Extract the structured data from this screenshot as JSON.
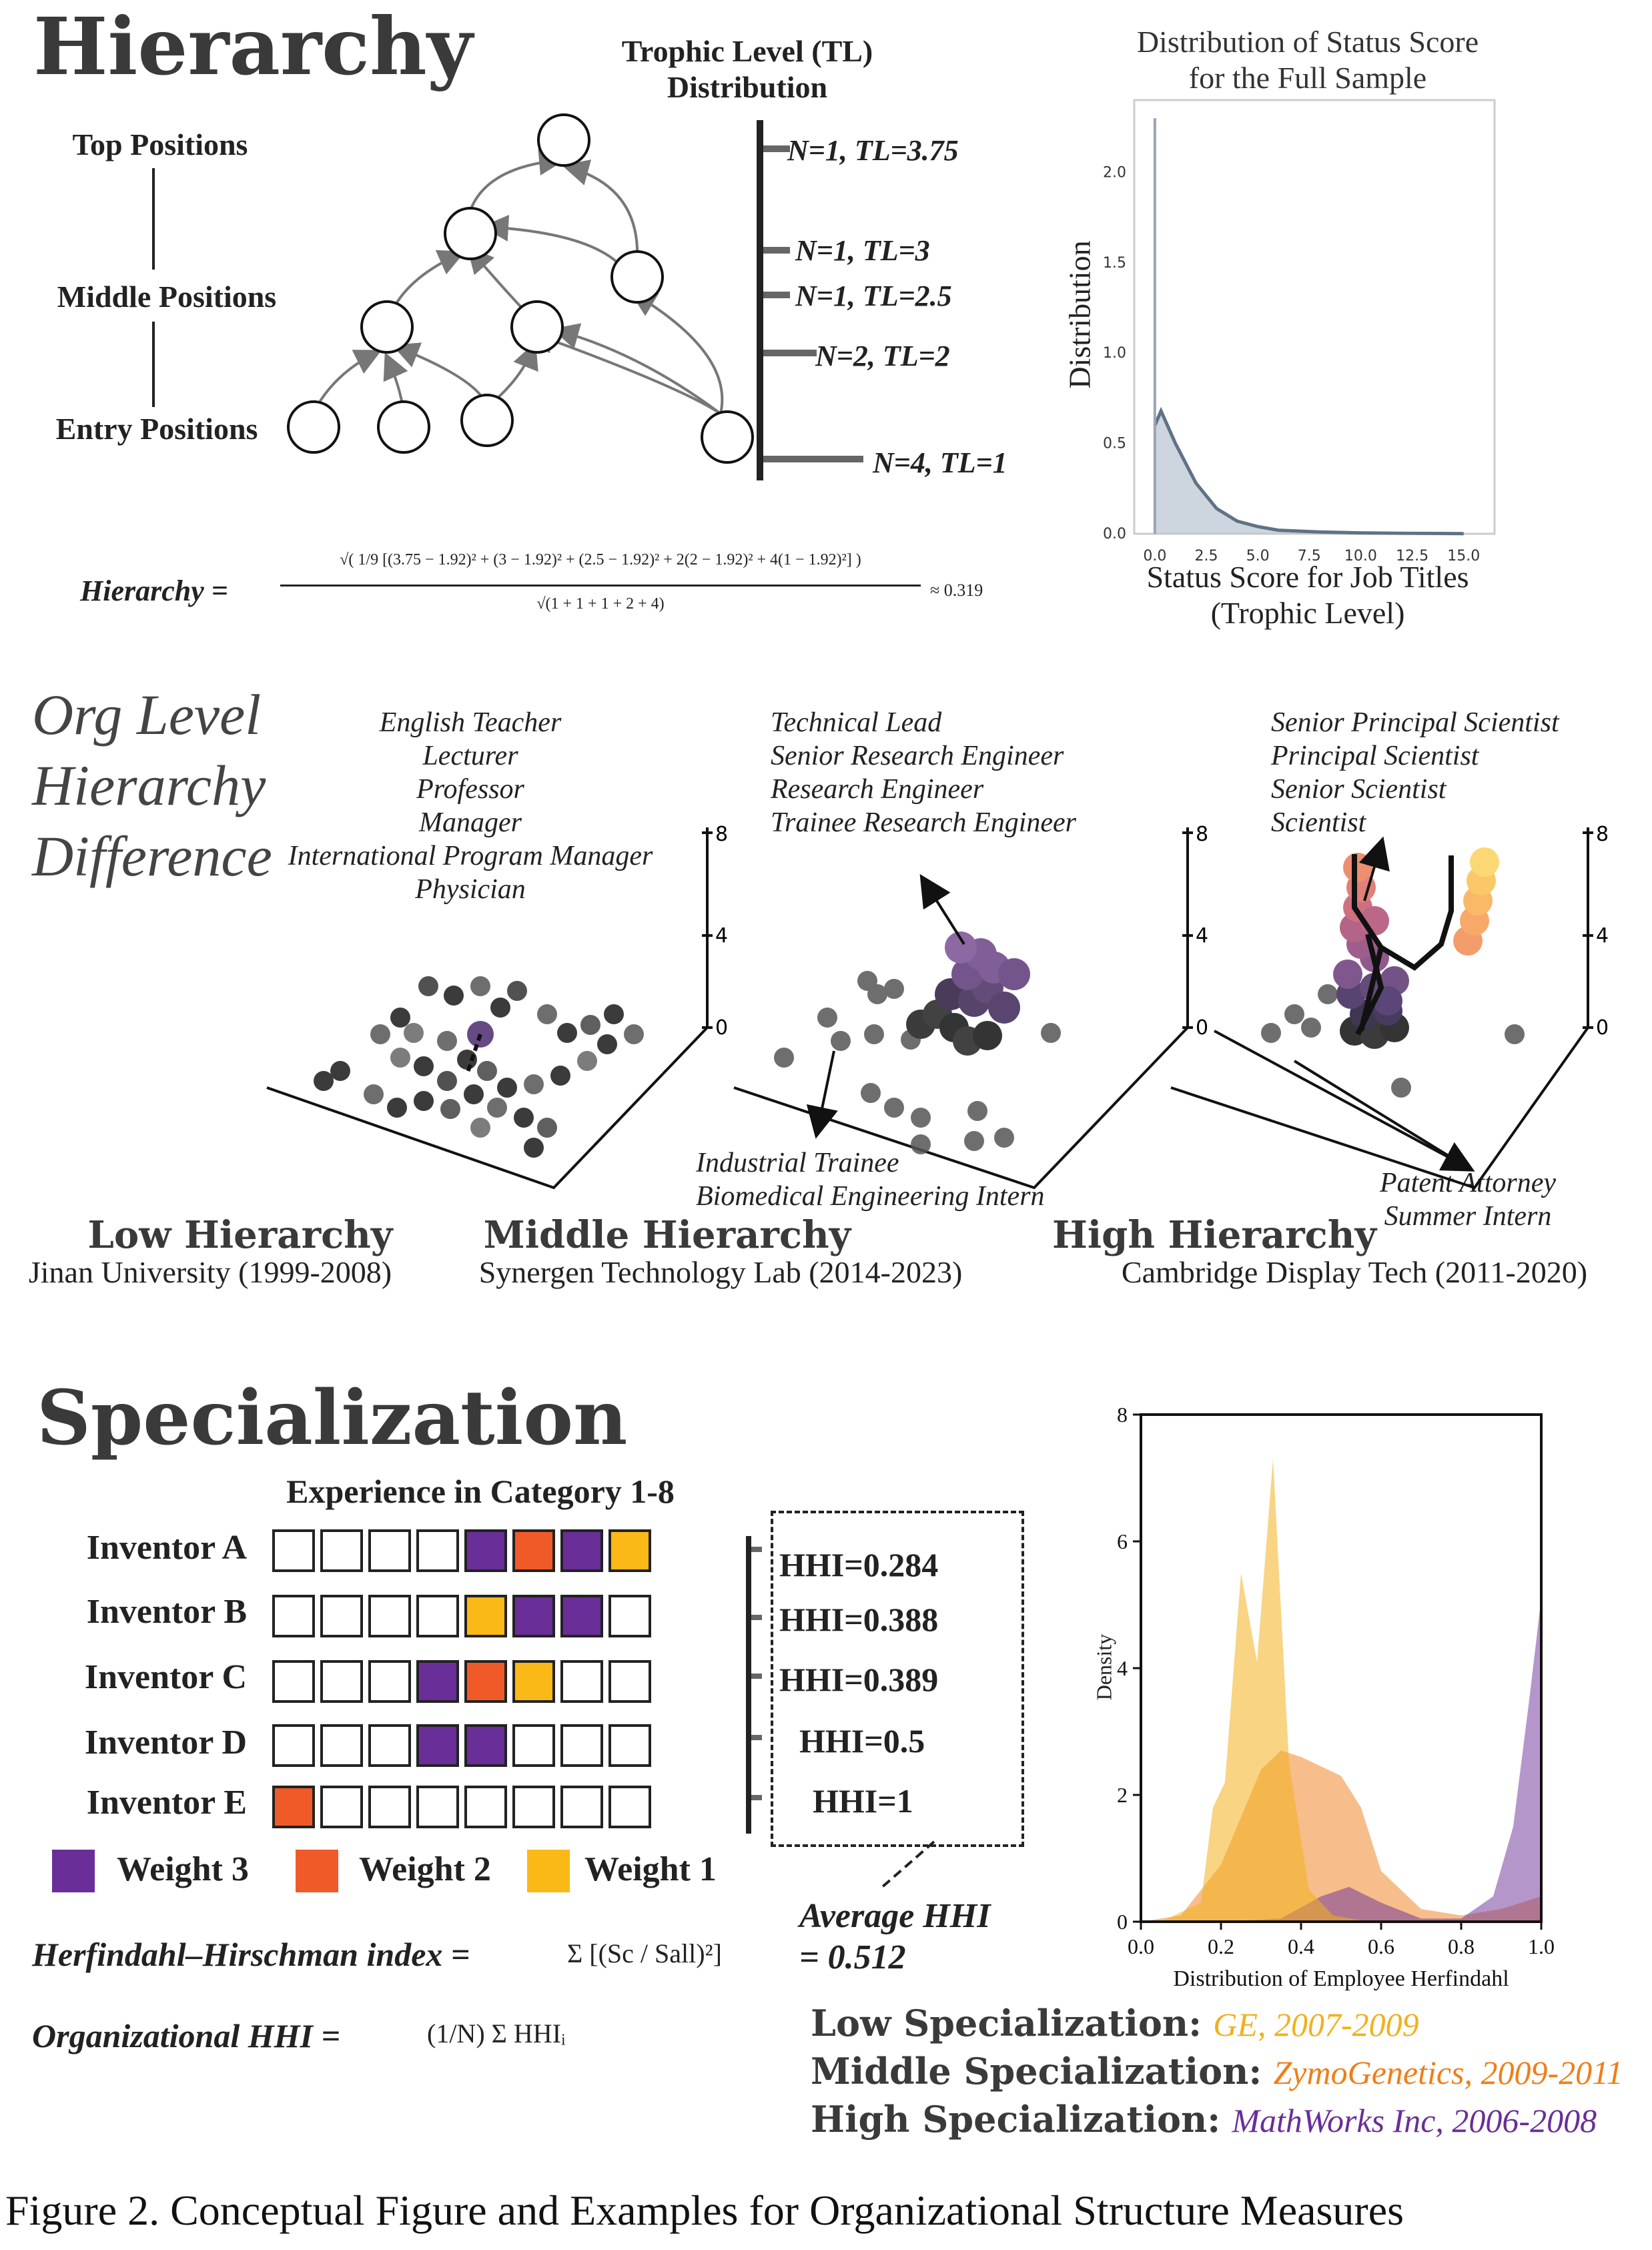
{
  "hierarchy": {
    "title": "Hierarchy",
    "levels": [
      "Top Positions",
      "Middle Positions",
      "Entry Positions"
    ],
    "tl_title_1": "Trophic Level (TL)",
    "tl_title_2": "Distribution",
    "tl_labels": [
      "N=1, TL=3.75",
      "N=1, TL=3",
      "N=1, TL=2.5",
      "N=2, TL=2",
      "N=4, TL=1"
    ],
    "formula_lhs": "Hierarchy =",
    "formula_num": "√( 1/9 [(3.75 − 1.92)² + (3 − 1.92)² + (2.5 − 1.92)² + 2(2 − 1.92)² + 4(1 − 1.92)²] )",
    "formula_den": "√(1 + 1 + 1 + 2 + 4)",
    "formula_result": "≈ 0.319"
  },
  "status_chart": {
    "title_1": "Distribution of Status Score",
    "title_2": "for the Full Sample",
    "xlabel_1": "Status Score for Job Titles",
    "xlabel_2": "(Trophic Level)",
    "ylabel": "Distribution",
    "xticks": [
      "0.0",
      "2.5",
      "5.0",
      "7.5",
      "10.0",
      "12.5",
      "15.0"
    ],
    "yticks": [
      "0.0",
      "0.5",
      "1.0",
      "1.5",
      "2.0"
    ]
  },
  "org_level": {
    "title": [
      "Org Level",
      "Hierarchy",
      "Difference"
    ],
    "low": {
      "label": "Low Hierarchy",
      "org": "Jinan University (1999-2008)",
      "titles": [
        "English Teacher",
        "Lecturer",
        "Professor",
        "Manager",
        "International Program Manager",
        "Physician"
      ]
    },
    "middle": {
      "label": "Middle Hierarchy",
      "org": "Synergen Technology Lab (2014-2023)",
      "titles_top": [
        "Technical Lead",
        "Senior Research Engineer",
        "Research Engineer",
        "Trainee Research Engineer"
      ],
      "titles_bottom": [
        "Industrial Trainee",
        "Biomedical Engineering Intern"
      ]
    },
    "high": {
      "label": "High Hierarchy",
      "org": "Cambridge Display Tech (2011-2020)",
      "titles_top": [
        "Senior Principal Scientist",
        "Principal Scientist",
        "Senior Scientist",
        "Scientist"
      ],
      "titles_bottom": [
        "Patent Attorney",
        "Summer Intern"
      ]
    },
    "zticks": [
      "8",
      "4",
      "0"
    ]
  },
  "specialization": {
    "title": "Specialization",
    "grid_title": "Experience in Category 1-8",
    "inventors": [
      {
        "name": "Inventor A",
        "cells": [
          0,
          0,
          0,
          0,
          3,
          2,
          3,
          1
        ],
        "hhi": "HHI=0.284"
      },
      {
        "name": "Inventor B",
        "cells": [
          0,
          0,
          0,
          0,
          1,
          3,
          3,
          0
        ],
        "hhi": "HHI=0.388"
      },
      {
        "name": "Inventor C",
        "cells": [
          0,
          0,
          0,
          3,
          2,
          1,
          0,
          0
        ],
        "hhi": "HHI=0.389"
      },
      {
        "name": "Inventor D",
        "cells": [
          0,
          0,
          0,
          3,
          3,
          0,
          0,
          0
        ],
        "hhi": "HHI=0.5"
      },
      {
        "name": "Inventor E",
        "cells": [
          2,
          0,
          0,
          0,
          0,
          0,
          0,
          0
        ],
        "hhi": "HHI=1"
      }
    ],
    "legend": [
      "Weight 3",
      "Weight 2",
      "Weight 1"
    ],
    "avg_hhi_1": "Average HHI",
    "avg_hhi_2": "= 0.512",
    "hhi_formula_lhs": "Herfindahl–Hirschman index =",
    "hhi_formula_rhs": "Σ [(Sc / Sall)²]",
    "org_hhi_lhs": "Organizational HHI =",
    "org_hhi_rhs": "(1/N) Σ HHIᵢ",
    "low_label": "Low Specialization:",
    "low_org": "GE, 2007-2009",
    "mid_label": "Middle Specialization:",
    "mid_org": "ZymoGenetics, 2009-2011",
    "high_label": "High Specialization:",
    "high_org": "MathWorks Inc, 2006-2008",
    "colors": {
      "low": "#f2b01e",
      "mid": "#f07e18",
      "high": "#6a2e98"
    }
  },
  "density_chart": {
    "xlabel": "Distribution of Employee Herfindahl",
    "ylabel": "Density",
    "xticks": [
      "0.0",
      "0.2",
      "0.4",
      "0.6",
      "0.8",
      "1.0"
    ],
    "yticks": [
      "0",
      "2",
      "4",
      "6",
      "8"
    ]
  },
  "caption": "Figure 2. Conceptual Figure and Examples for Organizational Structure Measures",
  "chart_data": [
    {
      "type": "area",
      "title": "Distribution of Status Score for the Full Sample",
      "xlabel": "Status Score for Job Titles (Trophic Level)",
      "ylabel": "Distribution",
      "xlim": [
        -1,
        16.5
      ],
      "ylim": [
        0,
        2.4
      ],
      "series": [
        {
          "x": [
            0,
            0.3,
            1,
            2,
            3,
            4,
            5,
            6,
            8,
            10,
            12,
            15
          ],
          "values": [
            0.6,
            0.68,
            0.5,
            0.28,
            0.14,
            0.07,
            0.04,
            0.02,
            0.01,
            0.005,
            0.003,
            0.001
          ]
        }
      ],
      "spike": {
        "x": 0.0,
        "value": 2.3
      }
    },
    {
      "type": "area",
      "xlabel": "Distribution of Employee Herfindahl",
      "ylabel": "Density",
      "xlim": [
        0,
        1
      ],
      "ylim": [
        0,
        8
      ],
      "series": [
        {
          "name": "GE, 2007-2009",
          "x": [
            0.05,
            0.15,
            0.18,
            0.21,
            0.25,
            0.29,
            0.33,
            0.37,
            0.42,
            0.48,
            0.55,
            0.65
          ],
          "values": [
            0,
            0.3,
            1.8,
            2.2,
            5.5,
            4.1,
            7.3,
            2.5,
            0.5,
            0.1,
            0.02,
            0
          ]
        },
        {
          "name": "ZymoGenetics, 2009-2011",
          "x": [
            0.0,
            0.1,
            0.2,
            0.3,
            0.35,
            0.4,
            0.5,
            0.55,
            0.6,
            0.7,
            0.8,
            0.9,
            1.0
          ],
          "values": [
            0,
            0.1,
            0.9,
            2.4,
            2.7,
            2.6,
            2.3,
            1.8,
            0.8,
            0.2,
            0.1,
            0.2,
            0.4
          ]
        },
        {
          "name": "MathWorks Inc, 2006-2008",
          "x": [
            0.2,
            0.35,
            0.45,
            0.52,
            0.6,
            0.7,
            0.8,
            0.88,
            0.93,
            0.97,
            1.0
          ],
          "values": [
            0,
            0.05,
            0.4,
            0.55,
            0.3,
            0.05,
            0.05,
            0.4,
            1.5,
            3.5,
            5.1
          ]
        }
      ]
    }
  ]
}
